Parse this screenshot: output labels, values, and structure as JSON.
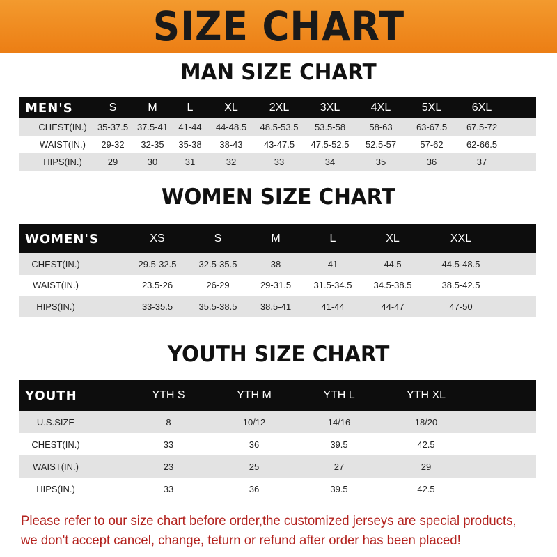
{
  "title": "SIZE CHART",
  "men": {
    "heading": "MAN SIZE CHART",
    "header": "MEN'S",
    "sizes": [
      "S",
      "M",
      "L",
      "XL",
      "2XL",
      "3XL",
      "4XL",
      "5XL",
      "6XL"
    ],
    "rows": [
      {
        "label": "CHEST(IN.)",
        "values": [
          "35-37.5",
          "37.5-41",
          "41-44",
          "44-48.5",
          "48.5-53.5",
          "53.5-58",
          "58-63",
          "63-67.5",
          "67.5-72"
        ]
      },
      {
        "label": "WAIST(IN.)",
        "values": [
          "29-32",
          "32-35",
          "35-38",
          "38-43",
          "43-47.5",
          "47.5-52.5",
          "52.5-57",
          "57-62",
          "62-66.5"
        ]
      },
      {
        "label": "HIPS(IN.)",
        "values": [
          "29",
          "30",
          "31",
          "32",
          "33",
          "34",
          "35",
          "36",
          "37"
        ]
      }
    ]
  },
  "women": {
    "heading": "WOMEN SIZE CHART",
    "header": "WOMEN'S",
    "sizes": [
      "XS",
      "S",
      "M",
      "L",
      "XL",
      "XXL"
    ],
    "rows": [
      {
        "label": "CHEST(IN.)",
        "values": [
          "29.5-32.5",
          "32.5-35.5",
          "38",
          "41",
          "44.5",
          "44.5-48.5"
        ]
      },
      {
        "label": "WAIST(IN.)",
        "values": [
          "23.5-26",
          "26-29",
          "29-31.5",
          "31.5-34.5",
          "34.5-38.5",
          "38.5-42.5"
        ]
      },
      {
        "label": "HIPS(IN.)",
        "values": [
          "33-35.5",
          "35.5-38.5",
          "38.5-41",
          "41-44",
          "44-47",
          "47-50"
        ]
      }
    ]
  },
  "youth": {
    "heading": "YOUTH SIZE CHART",
    "header": "YOUTH",
    "sizes": [
      "YTH S",
      "YTH M",
      "YTH L",
      "YTH XL"
    ],
    "rows": [
      {
        "label": "U.S.SIZE",
        "values": [
          "8",
          "10/12",
          "14/16",
          "18/20"
        ]
      },
      {
        "label": "CHEST(IN.)",
        "values": [
          "33",
          "36",
          "39.5",
          "42.5"
        ]
      },
      {
        "label": "WAIST(IN.)",
        "values": [
          "23",
          "25",
          "27",
          "29"
        ]
      },
      {
        "label": "HIPS(IN.)",
        "values": [
          "33",
          "36",
          "39.5",
          "42.5"
        ]
      }
    ]
  },
  "note": "Please refer to our size chart before order,the customized jerseys are special products, we don't accept cancel, change, teturn or refund after order has been placed!"
}
